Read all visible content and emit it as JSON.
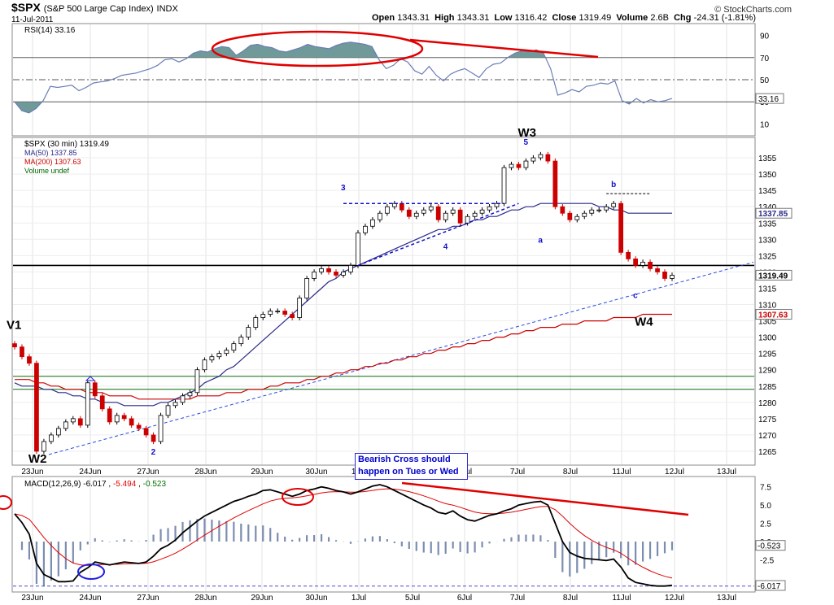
{
  "header": {
    "symbol": "$SPX",
    "name": "(S&P 500 Large Cap Index)",
    "exchange": "INDX",
    "date": "11-Jul-2011",
    "credit": "© StockCharts.com",
    "quote": {
      "open_label": "Open",
      "open": "1343.31",
      "high_label": "High",
      "high": "1343.31",
      "low_label": "Low",
      "low": "1316.42",
      "close_label": "Close",
      "close": "1319.49",
      "volume_label": "Volume",
      "volume": "2.6B",
      "chg_label": "Chg",
      "chg": "-24.31 (-1.81%)"
    }
  },
  "colors": {
    "price_up": "#000000",
    "price_down": "#cc0000",
    "ma50": "#2a2a8a",
    "ma200": "#cc0000",
    "rsi": "#6b7db5",
    "rsi_fill": "#6f9a99",
    "macd": "#000000",
    "signal": "#e00000",
    "histogram": "#7b8db0",
    "annotation": "#e00000",
    "wave": "#1010cc"
  },
  "callout": {
    "line1": "Bearish Cross should",
    "line2": "happen on Tues or Wed"
  },
  "chart_data": [
    {
      "type": "line",
      "panel": "RSI",
      "legend": "RSI(14) 33.16",
      "current_label": "33.16",
      "ylim": [
        0,
        100
      ],
      "ticks": [
        "90",
        "70",
        "50",
        "30",
        "10"
      ],
      "tick_values": [
        90,
        70,
        50,
        30,
        10
      ],
      "reference_lines": [
        70,
        50,
        30
      ],
      "values": [
        30,
        22,
        20,
        24,
        31,
        44,
        43,
        44,
        45,
        40,
        43,
        47,
        48,
        49,
        51,
        54,
        55,
        56,
        58,
        60,
        63,
        68,
        69,
        66,
        69,
        74,
        76,
        75,
        78,
        80,
        79,
        72,
        76,
        81,
        82,
        80,
        79,
        76,
        75,
        77,
        79,
        82,
        80,
        79,
        78,
        81,
        83,
        84,
        83,
        82,
        80,
        68,
        60,
        63,
        69,
        66,
        58,
        55,
        62,
        54,
        49,
        55,
        58,
        60,
        56,
        52,
        60,
        64,
        65,
        70,
        74,
        76,
        75,
        77,
        74,
        60,
        36,
        38,
        41,
        39,
        44,
        45,
        47,
        46,
        49,
        31,
        28,
        33,
        29,
        32,
        30,
        31,
        33
      ]
    },
    {
      "type": "line",
      "panel": "Price",
      "legend": [
        "$SPX (30 min) 1319.49",
        "MA(50) 1337.85",
        "MA(200) 1307.63",
        "Volume undef"
      ],
      "price_label": "1319.49",
      "ma50_label": "1337.85",
      "ma200_label": "1307.63",
      "ylim": [
        1261,
        1361
      ],
      "ticks": [
        "1355",
        "1350",
        "1345",
        "1340",
        "1335",
        "1330",
        "1325",
        "1320",
        "1315",
        "1310",
        "1305",
        "1300",
        "1295",
        "1290",
        "1285",
        "1280",
        "1275",
        "1270",
        "1265"
      ],
      "tick_values": [
        1355,
        1350,
        1345,
        1340,
        1335,
        1330,
        1325,
        1320,
        1315,
        1310,
        1305,
        1300,
        1295,
        1290,
        1285,
        1280,
        1275,
        1270,
        1265
      ],
      "x_ticks": [
        "23Jun",
        "24Jun",
        "27Jun",
        "28Jun",
        "29Jun",
        "30Jun",
        "1Jul",
        "5Jul",
        "6Jul",
        "7Jul",
        "8Jul",
        "11Jul",
        "12Jul",
        "13Jul"
      ],
      "close": [
        1297,
        1294,
        1292,
        1265,
        1268,
        1270,
        1272,
        1274,
        1275,
        1273,
        1286,
        1282,
        1278,
        1274,
        1276,
        1275,
        1273,
        1272,
        1270,
        1268,
        1276,
        1279,
        1280,
        1282,
        1283,
        1290,
        1293,
        1294,
        1295,
        1296,
        1298,
        1300,
        1303,
        1306,
        1307,
        1308,
        1308,
        1307,
        1306,
        1312,
        1318,
        1320,
        1321,
        1320,
        1319,
        1320,
        1322,
        1332,
        1334,
        1336,
        1338,
        1340,
        1341,
        1339,
        1337,
        1338,
        1339,
        1340,
        1336,
        1338,
        1339,
        1335,
        1337,
        1338,
        1339,
        1340,
        1341,
        1352,
        1353,
        1352,
        1354,
        1355,
        1356,
        1354,
        1340,
        1338,
        1336,
        1337,
        1338,
        1339,
        1339,
        1340,
        1341,
        1326,
        1324,
        1322,
        1323,
        1321,
        1320,
        1318,
        1319
      ],
      "ma50": [
        1286,
        1285,
        1285,
        1285,
        1284,
        1284,
        1283,
        1283,
        1282,
        1282,
        1281,
        1281,
        1280,
        1280,
        1280,
        1279,
        1279,
        1279,
        1279,
        1279,
        1280,
        1280,
        1281,
        1282,
        1283,
        1284,
        1286,
        1287,
        1288,
        1290,
        1291,
        1293,
        1295,
        1297,
        1299,
        1301,
        1303,
        1305,
        1307,
        1309,
        1311,
        1313,
        1315,
        1317,
        1318,
        1320,
        1321,
        1322,
        1323,
        1324,
        1325,
        1326,
        1327,
        1328,
        1329,
        1330,
        1331,
        1332,
        1333,
        1333,
        1334,
        1334,
        1335,
        1336,
        1336,
        1337,
        1337,
        1338,
        1339,
        1339,
        1340,
        1340,
        1341,
        1341,
        1341,
        1341,
        1341,
        1341,
        1341,
        1341,
        1340,
        1340,
        1339,
        1339,
        1338,
        1338,
        1338,
        1338,
        1338,
        1338,
        1338
      ],
      "ma200": [
        1287,
        1287,
        1287,
        1286,
        1286,
        1285,
        1285,
        1284,
        1284,
        1284,
        1283,
        1283,
        1283,
        1282,
        1282,
        1282,
        1282,
        1281,
        1281,
        1281,
        1281,
        1281,
        1281,
        1281,
        1281,
        1282,
        1282,
        1282,
        1282,
        1283,
        1283,
        1283,
        1284,
        1284,
        1284,
        1285,
        1285,
        1286,
        1286,
        1286,
        1287,
        1287,
        1288,
        1288,
        1289,
        1289,
        1290,
        1290,
        1291,
        1291,
        1292,
        1292,
        1293,
        1293,
        1294,
        1294,
        1295,
        1295,
        1296,
        1296,
        1297,
        1297,
        1298,
        1298,
        1299,
        1299,
        1300,
        1300,
        1301,
        1301,
        1302,
        1302,
        1303,
        1303,
        1303,
        1304,
        1304,
        1304,
        1305,
        1305,
        1305,
        1305,
        1306,
        1306,
        1306,
        1306,
        1307,
        1307,
        1307,
        1307,
        1307
      ],
      "horizontal_lines": [
        1322,
        1288,
        1284
      ],
      "wave_labels": [
        {
          "text": "W2",
          "x": 3,
          "y": 1263
        },
        {
          "text": "2",
          "x": 19,
          "y": 1265
        },
        {
          "text": "3",
          "x": 45,
          "y": 1346
        },
        {
          "text": "4",
          "x": 59,
          "y": 1328
        },
        {
          "text": "5",
          "x": 70,
          "y": 1360
        },
        {
          "text": "W3",
          "x": 70,
          "y": 1363
        },
        {
          "text": "a",
          "x": 72,
          "y": 1330
        },
        {
          "text": "b",
          "x": 82,
          "y": 1347
        },
        {
          "text": "c",
          "x": 85,
          "y": 1313
        },
        {
          "text": "W4",
          "x": 86,
          "y": 1305
        },
        {
          "text": "V1",
          "x": 0,
          "y": 1304
        }
      ]
    },
    {
      "type": "line",
      "panel": "MACD",
      "legend": [
        "MACD(12,26,9)",
        "-6.017",
        ", ",
        "-5.494",
        ", ",
        "-0.523"
      ],
      "labels": {
        "macd": "-6.017",
        "signal": "-5.494",
        "hist": "-0.523"
      },
      "ylim": [
        -6.8,
        8.8
      ],
      "ticks": [
        "7.5",
        "5.0",
        "2.5",
        "0.0",
        "-2.5"
      ],
      "tick_values": [
        7.5,
        5,
        2.5,
        0,
        -2.5
      ],
      "macd": [
        3.8,
        2.6,
        1,
        -3,
        -4.5,
        -5,
        -5.5,
        -5.5,
        -5.4,
        -4.2,
        -3.6,
        -2.8,
        -3,
        -3.2,
        -3,
        -2.8,
        -2.9,
        -3,
        -2.8,
        -2,
        -1,
        -0.5,
        0.2,
        1.2,
        2,
        2.8,
        3.5,
        4,
        4.5,
        5,
        5.5,
        5.8,
        6.2,
        6.5,
        7,
        7.1,
        6.8,
        6.5,
        6.2,
        6.5,
        7,
        7.2,
        7.5,
        7.3,
        7,
        6.8,
        6.5,
        6.8,
        7.2,
        7.6,
        7.8,
        7.5,
        7,
        6.5,
        6,
        5.5,
        5,
        4.6,
        4,
        3.8,
        4.2,
        3.5,
        3,
        2.8,
        3.2,
        3.6,
        3.8,
        4.2,
        4.5,
        5,
        5.2,
        5.4,
        5.5,
        5,
        2.5,
        0,
        -1.5,
        -2,
        -2.3,
        -2.4,
        -2.5,
        -2.6,
        -2.4,
        -3.5,
        -5,
        -5.6,
        -5.8,
        -6,
        -6.1,
        -6.1,
        -6
      ]
    }
  ]
}
